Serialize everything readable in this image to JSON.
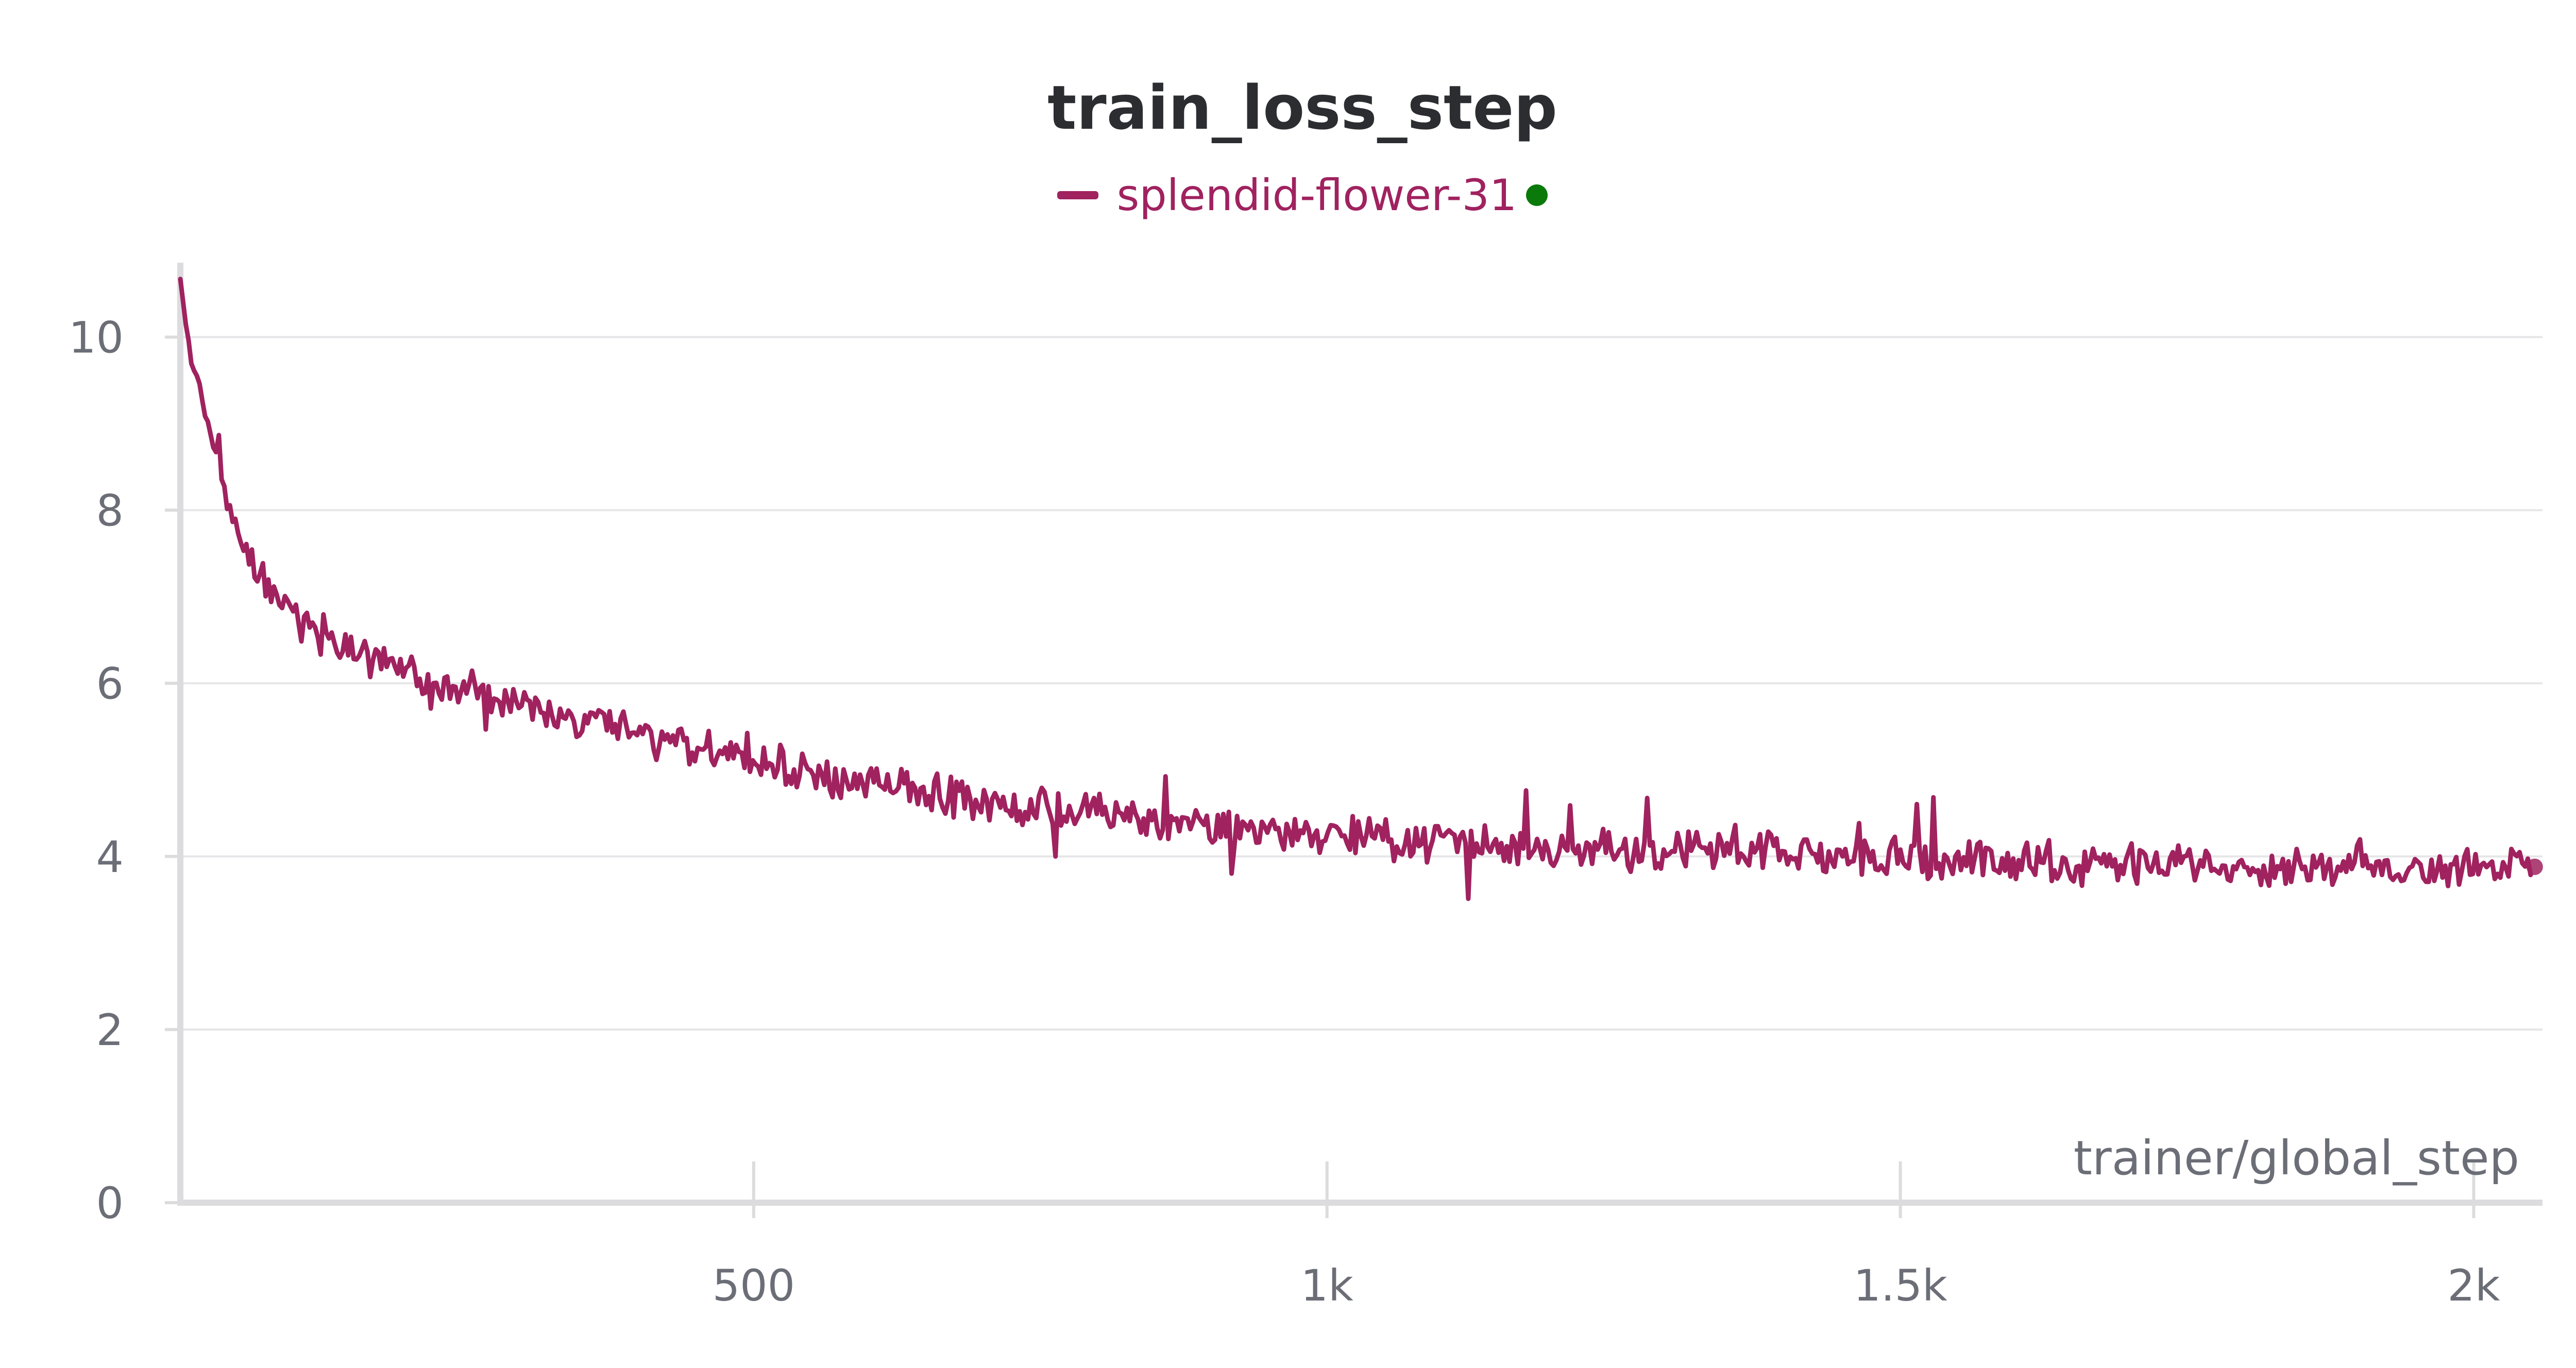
{
  "colors": {
    "series": "#a0225f",
    "grid": "#e6e6e8",
    "axis": "#dcdcde",
    "text": "#6b6e76",
    "status_dot": "#0a7a0a"
  },
  "chart_data": {
    "type": "line",
    "title": "train_loss_step",
    "xlabel": "trainer/global_step",
    "ylabel": "",
    "xlim": [
      0,
      2060
    ],
    "ylim": [
      0,
      10.8
    ],
    "x_ticks": [
      500,
      1000,
      1500,
      2000
    ],
    "x_tick_labels": [
      "500",
      "1k",
      "1.5k",
      "2k"
    ],
    "y_ticks": [
      0,
      2,
      4,
      6,
      8,
      10
    ],
    "y_tick_labels": [
      "0",
      "2",
      "4",
      "6",
      "8",
      "10"
    ],
    "grid": true,
    "legend": "top-center",
    "series": [
      {
        "name": "splendid-flower-31",
        "status": "running",
        "x": [
          0,
          10,
          20,
          30,
          40,
          50,
          60,
          70,
          80,
          100,
          120,
          150,
          200,
          250,
          300,
          350,
          400,
          450,
          500,
          550,
          600,
          650,
          700,
          750,
          800,
          850,
          900,
          950,
          1000,
          1050,
          1100,
          1150,
          1200,
          1250,
          1300,
          1350,
          1400,
          1450,
          1500,
          1550,
          1600,
          1650,
          1700,
          1750,
          1800,
          1850,
          1900,
          1950,
          2000,
          2050,
          2060
        ],
        "values": [
          10.6,
          9.7,
          9.2,
          8.7,
          8.1,
          7.7,
          7.45,
          7.25,
          7.05,
          6.8,
          6.6,
          6.4,
          6.15,
          5.95,
          5.75,
          5.55,
          5.4,
          5.25,
          5.1,
          4.98,
          4.85,
          4.75,
          4.65,
          4.55,
          4.48,
          4.4,
          4.35,
          4.3,
          4.26,
          4.22,
          4.18,
          4.15,
          4.12,
          4.09,
          4.06,
          4.04,
          4.02,
          4.0,
          3.98,
          3.96,
          3.94,
          3.93,
          3.92,
          3.91,
          3.9,
          3.9,
          3.89,
          3.89,
          3.88,
          3.88,
          3.88
        ]
      }
    ]
  }
}
